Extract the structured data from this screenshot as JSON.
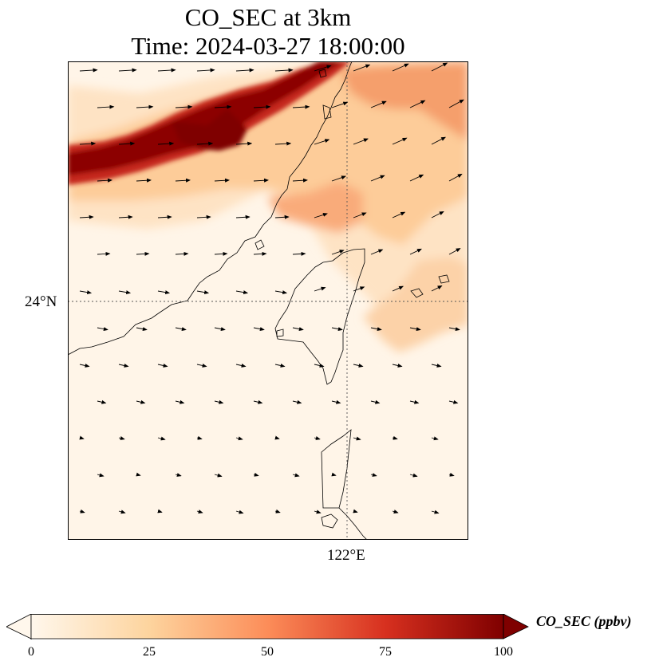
{
  "figure": {
    "title_line1": "CO_SEC at 3km",
    "title_line2": "Time: 2024-03-27 18:00:00"
  },
  "map": {
    "lat_label": "24°N",
    "lon_label": "122°E",
    "field_name": "CO_SEC",
    "units": "ppbv",
    "colormap": "OrRd",
    "colormap_stops": [
      "#fff7ec",
      "#fdd49e",
      "#fc8d59",
      "#d7301f",
      "#7f0000"
    ],
    "extent_approx": {
      "lon": [
        117.5,
        123.7
      ],
      "lat": [
        19.4,
        28.6
      ]
    },
    "gridlines": {
      "lat": [
        24
      ],
      "lon": [
        122
      ]
    },
    "features": [
      "coastline",
      "wind-vectors"
    ]
  },
  "colorbar": {
    "label": "CO_SEC (ppbv)",
    "ticks": [
      "0",
      "25",
      "50",
      "75",
      "100"
    ],
    "extend": "both",
    "min": 0,
    "max": 100
  }
}
